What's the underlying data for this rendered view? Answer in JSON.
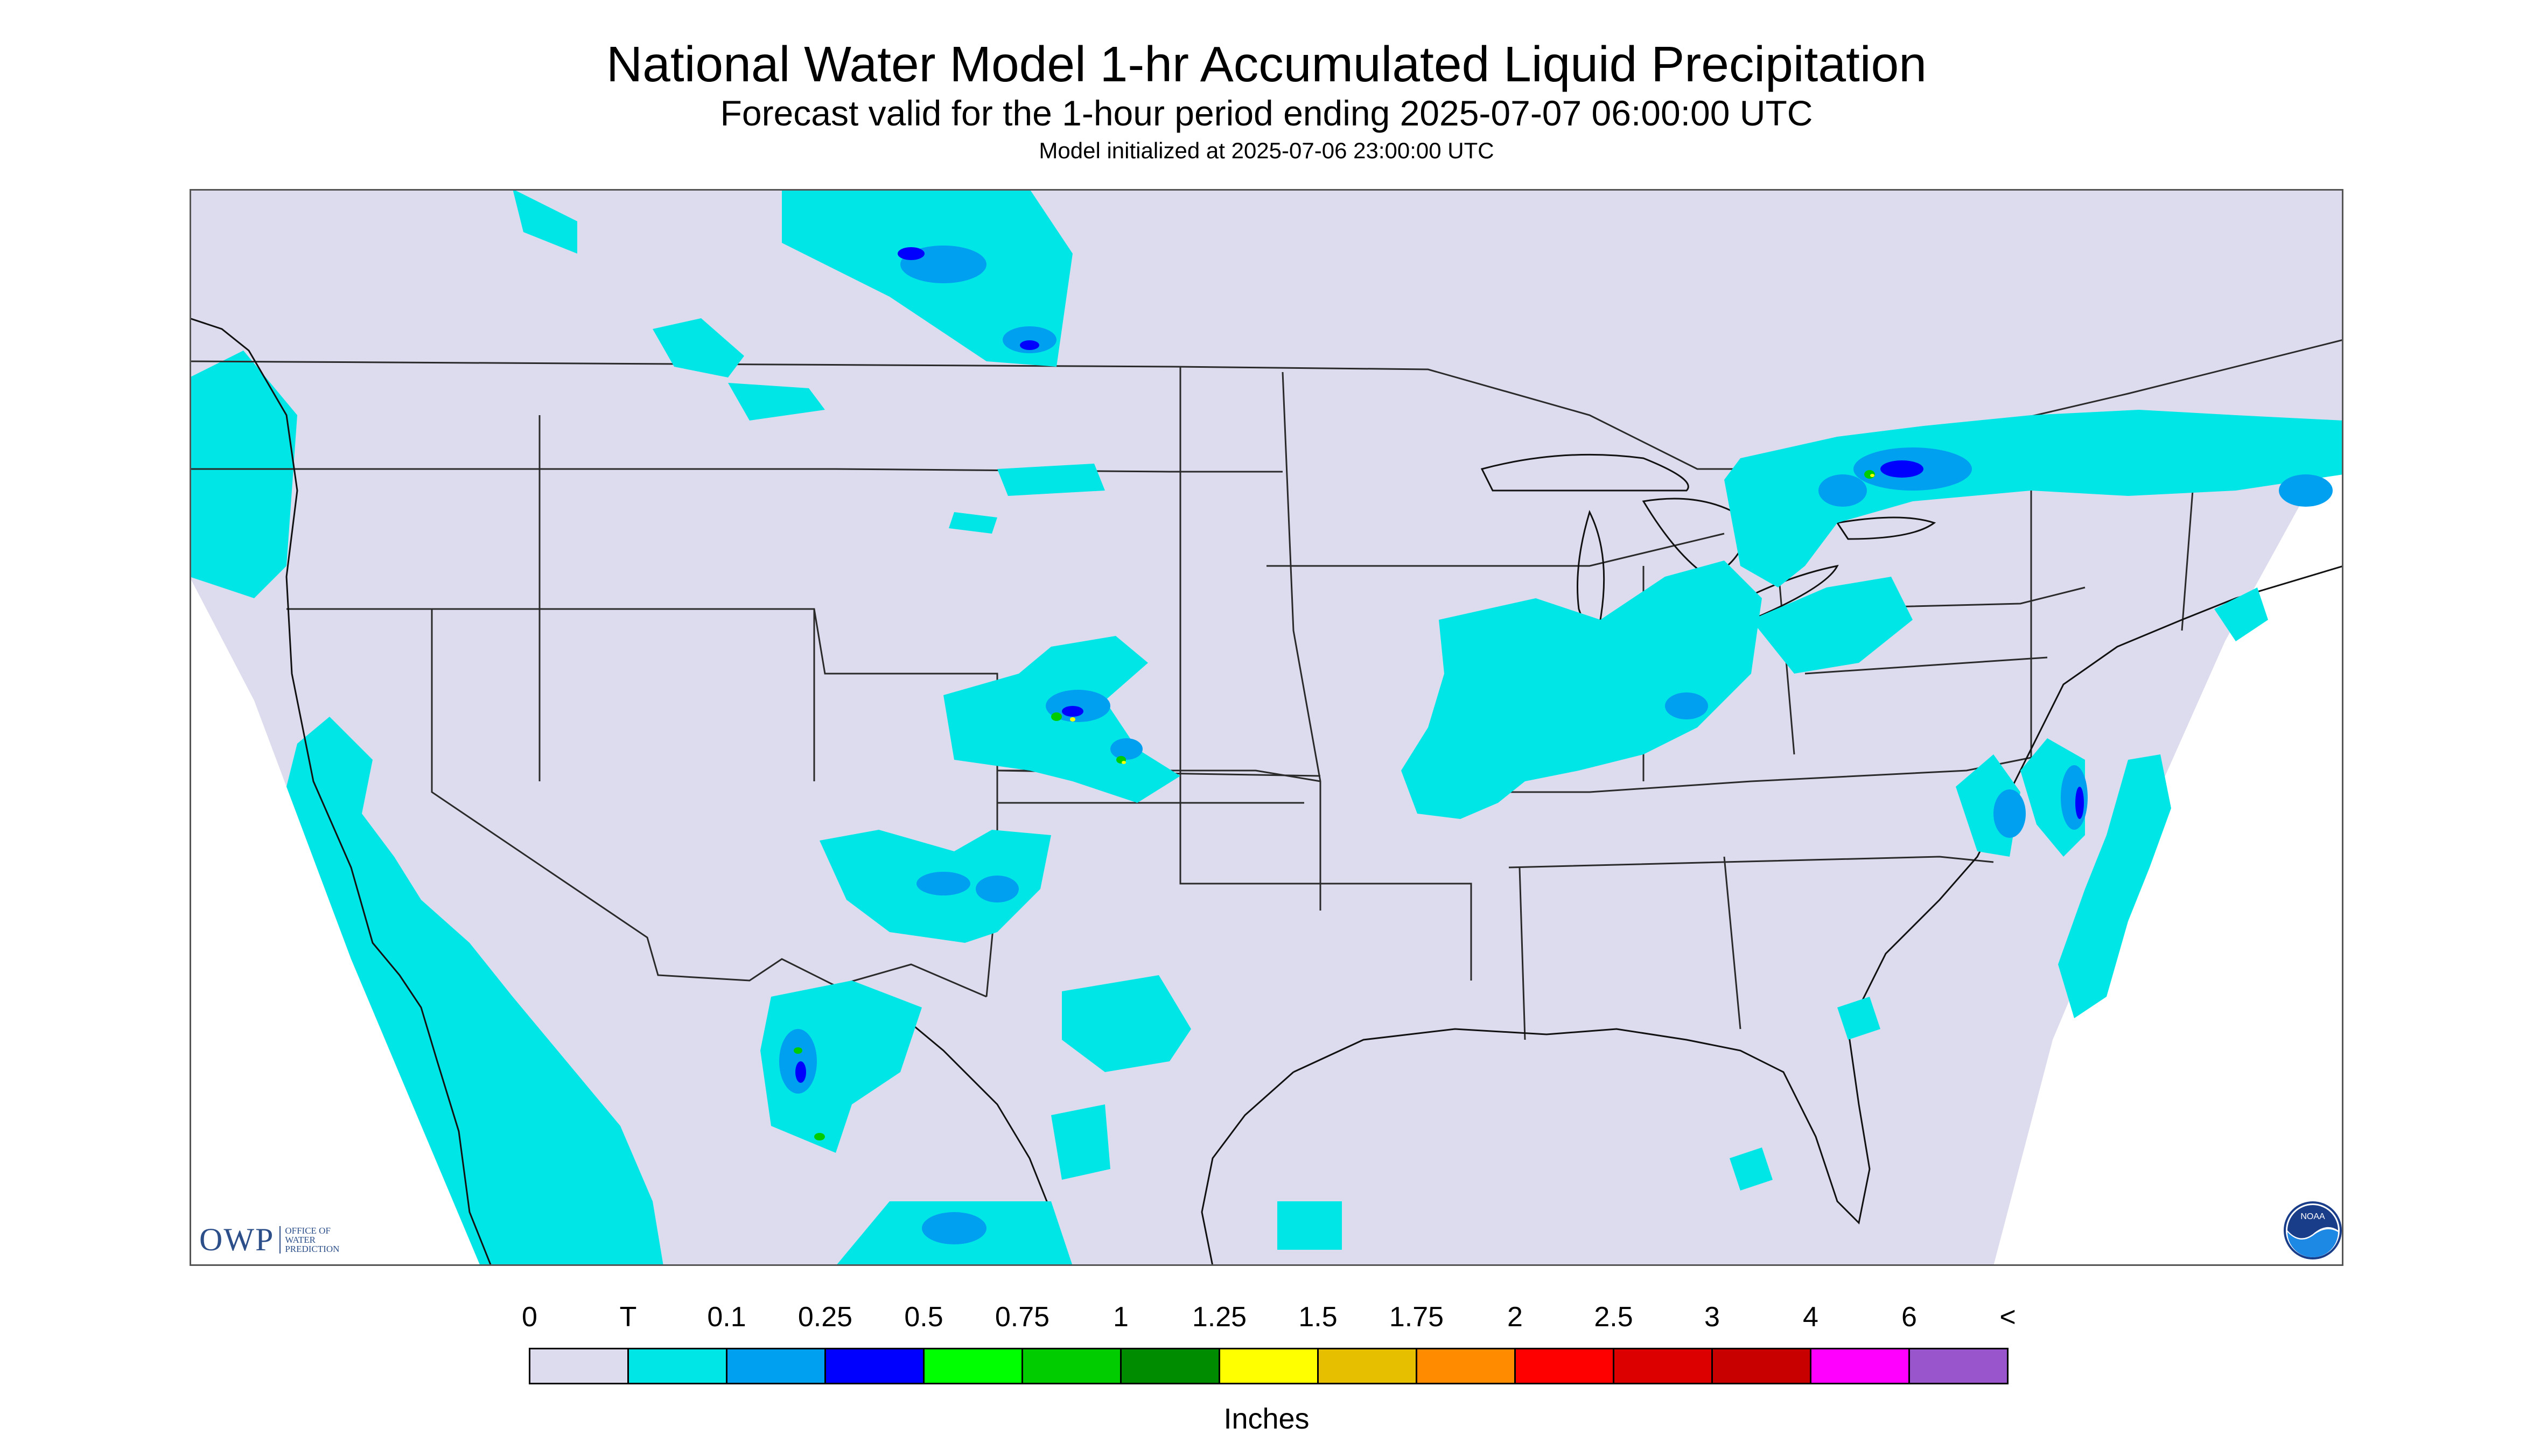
{
  "title": "National Water Model 1-hr Accumulated Liquid Precipitation",
  "subtitle": "Forecast valid for the 1-hour period ending 2025-07-07 06:00:00 UTC",
  "init_text": "Model initialized at 2025-07-06 23:00:00 UTC",
  "legend": {
    "labels": [
      "0",
      "T",
      "0.1",
      "0.25",
      "0.5",
      "0.75",
      "1",
      "1.25",
      "1.5",
      "1.75",
      "2",
      "2.5",
      "3",
      "4",
      "6",
      "<"
    ],
    "colors": [
      "#dcdcee",
      "#00e6e6",
      "#00a0f0",
      "#0000ff",
      "#00ff00",
      "#00cc00",
      "#008c00",
      "#ffff00",
      "#e6c000",
      "#ff8c00",
      "#ff0000",
      "#dd0000",
      "#c80000",
      "#ff00ff",
      "#9955cc"
    ],
    "units": "Inches"
  },
  "colors": {
    "background": "#dcdcee",
    "trace": "#00e6e6",
    "light": "#00a0f0",
    "moderate": "#0000ff",
    "heavy": "#00cc00",
    "very_heavy": "#ffff00"
  },
  "logos": {
    "owp_big": "OWP",
    "owp_small": "Office of Water Prediction",
    "noaa": "NOAA"
  }
}
